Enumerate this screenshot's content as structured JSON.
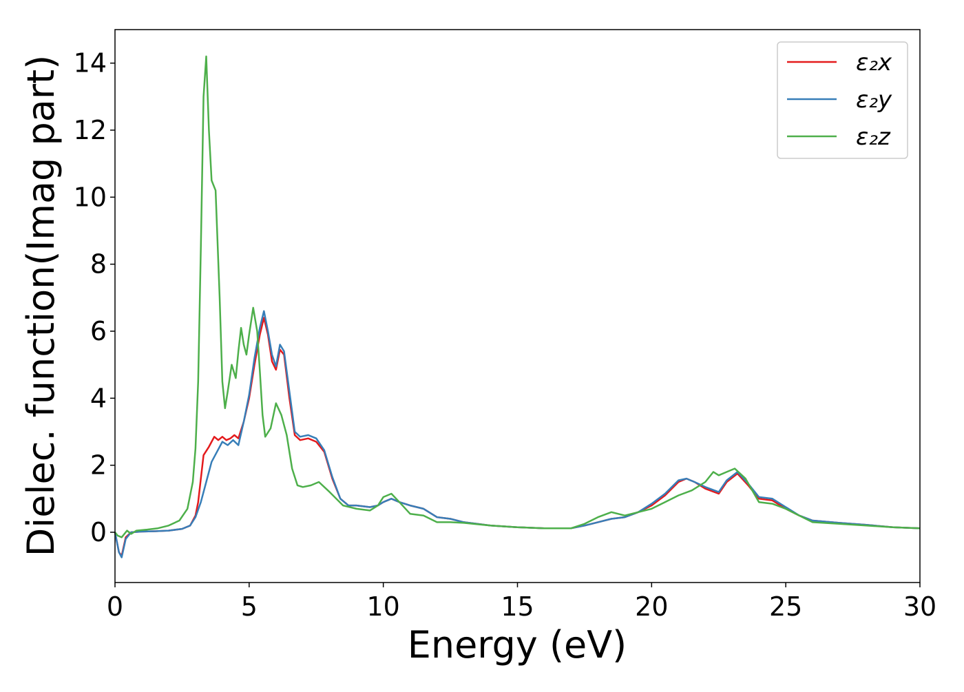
{
  "chart_data": {
    "type": "line",
    "title": "",
    "xlabel": "Energy (eV)",
    "ylabel": "Dielec. function(Imag part)",
    "xlim": [
      0,
      30
    ],
    "ylim": [
      -1.5,
      15
    ],
    "xticks": [
      0,
      5,
      10,
      15,
      20,
      25,
      30
    ],
    "yticks": [
      0,
      2,
      4,
      6,
      8,
      10,
      12,
      14
    ],
    "grid": false,
    "legend_position": "top-right",
    "series": [
      {
        "name": "ε₂x",
        "color": "#e41a1c",
        "points": [
          [
            0,
            0
          ],
          [
            0.15,
            -0.6
          ],
          [
            0.25,
            -0.7
          ],
          [
            0.4,
            -0.15
          ],
          [
            0.6,
            0
          ],
          [
            1,
            0.02
          ],
          [
            1.5,
            0.03
          ],
          [
            2,
            0.05
          ],
          [
            2.5,
            0.1
          ],
          [
            2.8,
            0.2
          ],
          [
            3.0,
            0.5
          ],
          [
            3.1,
            0.9
          ],
          [
            3.2,
            1.6
          ],
          [
            3.3,
            2.3
          ],
          [
            3.5,
            2.55
          ],
          [
            3.7,
            2.85
          ],
          [
            3.85,
            2.75
          ],
          [
            4.0,
            2.85
          ],
          [
            4.15,
            2.75
          ],
          [
            4.3,
            2.8
          ],
          [
            4.45,
            2.9
          ],
          [
            4.6,
            2.8
          ],
          [
            4.8,
            3.3
          ],
          [
            5.0,
            4.0
          ],
          [
            5.2,
            5.0
          ],
          [
            5.4,
            5.9
          ],
          [
            5.55,
            6.4
          ],
          [
            5.7,
            5.9
          ],
          [
            5.85,
            5.1
          ],
          [
            6.0,
            4.85
          ],
          [
            6.15,
            5.45
          ],
          [
            6.3,
            5.3
          ],
          [
            6.5,
            4.0
          ],
          [
            6.7,
            2.9
          ],
          [
            6.9,
            2.75
          ],
          [
            7.2,
            2.8
          ],
          [
            7.5,
            2.7
          ],
          [
            7.8,
            2.4
          ],
          [
            8.1,
            1.6
          ],
          [
            8.4,
            1.0
          ],
          [
            8.7,
            0.8
          ],
          [
            9.0,
            0.8
          ],
          [
            9.5,
            0.75
          ],
          [
            9.8,
            0.8
          ],
          [
            10.0,
            0.9
          ],
          [
            10.3,
            1.0
          ],
          [
            10.6,
            0.9
          ],
          [
            11.0,
            0.8
          ],
          [
            11.5,
            0.7
          ],
          [
            12.0,
            0.45
          ],
          [
            12.5,
            0.4
          ],
          [
            13,
            0.3
          ],
          [
            14,
            0.2
          ],
          [
            15,
            0.15
          ],
          [
            16,
            0.12
          ],
          [
            17,
            0.12
          ],
          [
            17.5,
            0.2
          ],
          [
            18,
            0.3
          ],
          [
            18.5,
            0.4
          ],
          [
            19,
            0.45
          ],
          [
            19.5,
            0.6
          ],
          [
            20,
            0.8
          ],
          [
            20.5,
            1.1
          ],
          [
            21,
            1.5
          ],
          [
            21.3,
            1.6
          ],
          [
            21.6,
            1.5
          ],
          [
            22,
            1.3
          ],
          [
            22.5,
            1.15
          ],
          [
            22.8,
            1.5
          ],
          [
            23.2,
            1.75
          ],
          [
            23.6,
            1.4
          ],
          [
            24,
            1.0
          ],
          [
            24.5,
            0.95
          ],
          [
            25,
            0.7
          ],
          [
            25.5,
            0.5
          ],
          [
            26,
            0.35
          ],
          [
            27,
            0.28
          ],
          [
            28,
            0.22
          ],
          [
            29,
            0.15
          ],
          [
            30,
            0.12
          ]
        ]
      },
      {
        "name": "ε₂y",
        "color": "#377eb8",
        "points": [
          [
            0,
            0
          ],
          [
            0.15,
            -0.6
          ],
          [
            0.25,
            -0.75
          ],
          [
            0.4,
            -0.2
          ],
          [
            0.6,
            0
          ],
          [
            1,
            0.02
          ],
          [
            1.5,
            0.03
          ],
          [
            2,
            0.05
          ],
          [
            2.5,
            0.1
          ],
          [
            2.8,
            0.2
          ],
          [
            3.0,
            0.45
          ],
          [
            3.2,
            0.9
          ],
          [
            3.4,
            1.5
          ],
          [
            3.6,
            2.1
          ],
          [
            3.8,
            2.4
          ],
          [
            4.0,
            2.7
          ],
          [
            4.2,
            2.6
          ],
          [
            4.4,
            2.75
          ],
          [
            4.6,
            2.6
          ],
          [
            4.8,
            3.3
          ],
          [
            5.0,
            4.1
          ],
          [
            5.2,
            5.2
          ],
          [
            5.4,
            6.1
          ],
          [
            5.55,
            6.6
          ],
          [
            5.7,
            6.0
          ],
          [
            5.85,
            5.3
          ],
          [
            6.0,
            4.95
          ],
          [
            6.15,
            5.6
          ],
          [
            6.3,
            5.4
          ],
          [
            6.5,
            4.2
          ],
          [
            6.7,
            3.0
          ],
          [
            6.9,
            2.85
          ],
          [
            7.2,
            2.9
          ],
          [
            7.5,
            2.8
          ],
          [
            7.8,
            2.45
          ],
          [
            8.1,
            1.65
          ],
          [
            8.4,
            1.0
          ],
          [
            8.7,
            0.8
          ],
          [
            9.0,
            0.8
          ],
          [
            9.5,
            0.75
          ],
          [
            9.8,
            0.8
          ],
          [
            10.0,
            0.9
          ],
          [
            10.3,
            1.0
          ],
          [
            10.6,
            0.9
          ],
          [
            11.0,
            0.8
          ],
          [
            11.5,
            0.7
          ],
          [
            12.0,
            0.45
          ],
          [
            12.5,
            0.4
          ],
          [
            13,
            0.3
          ],
          [
            14,
            0.2
          ],
          [
            15,
            0.15
          ],
          [
            16,
            0.12
          ],
          [
            17,
            0.12
          ],
          [
            17.5,
            0.2
          ],
          [
            18,
            0.3
          ],
          [
            18.5,
            0.4
          ],
          [
            19,
            0.45
          ],
          [
            19.5,
            0.6
          ],
          [
            20,
            0.85
          ],
          [
            20.5,
            1.15
          ],
          [
            21,
            1.55
          ],
          [
            21.3,
            1.6
          ],
          [
            21.6,
            1.5
          ],
          [
            22,
            1.35
          ],
          [
            22.5,
            1.2
          ],
          [
            22.8,
            1.55
          ],
          [
            23.2,
            1.8
          ],
          [
            23.6,
            1.45
          ],
          [
            24,
            1.05
          ],
          [
            24.5,
            1.0
          ],
          [
            25,
            0.75
          ],
          [
            25.5,
            0.5
          ],
          [
            26,
            0.35
          ],
          [
            27,
            0.28
          ],
          [
            28,
            0.22
          ],
          [
            29,
            0.15
          ],
          [
            30,
            0.12
          ]
        ]
      },
      {
        "name": "ε₂z",
        "color": "#4daf4a",
        "points": [
          [
            0,
            0
          ],
          [
            0.1,
            -0.1
          ],
          [
            0.25,
            -0.15
          ],
          [
            0.45,
            0.05
          ],
          [
            0.6,
            -0.05
          ],
          [
            0.8,
            0.05
          ],
          [
            1.2,
            0.08
          ],
          [
            1.6,
            0.12
          ],
          [
            2.0,
            0.2
          ],
          [
            2.4,
            0.35
          ],
          [
            2.7,
            0.7
          ],
          [
            2.9,
            1.5
          ],
          [
            3.0,
            2.5
          ],
          [
            3.1,
            4.5
          ],
          [
            3.2,
            8.5
          ],
          [
            3.3,
            13.0
          ],
          [
            3.4,
            14.2
          ],
          [
            3.5,
            12.0
          ],
          [
            3.6,
            10.5
          ],
          [
            3.75,
            10.2
          ],
          [
            3.9,
            7.0
          ],
          [
            4.0,
            4.5
          ],
          [
            4.1,
            3.7
          ],
          [
            4.2,
            4.2
          ],
          [
            4.35,
            5.0
          ],
          [
            4.5,
            4.6
          ],
          [
            4.6,
            5.4
          ],
          [
            4.7,
            6.1
          ],
          [
            4.8,
            5.6
          ],
          [
            4.9,
            5.3
          ],
          [
            5.0,
            5.9
          ],
          [
            5.15,
            6.7
          ],
          [
            5.3,
            6.0
          ],
          [
            5.4,
            4.8
          ],
          [
            5.5,
            3.5
          ],
          [
            5.6,
            2.85
          ],
          [
            5.8,
            3.1
          ],
          [
            6.0,
            3.85
          ],
          [
            6.2,
            3.5
          ],
          [
            6.4,
            2.9
          ],
          [
            6.6,
            1.9
          ],
          [
            6.8,
            1.4
          ],
          [
            7.0,
            1.35
          ],
          [
            7.3,
            1.4
          ],
          [
            7.6,
            1.5
          ],
          [
            8.0,
            1.2
          ],
          [
            8.5,
            0.8
          ],
          [
            9.0,
            0.7
          ],
          [
            9.5,
            0.65
          ],
          [
            9.8,
            0.8
          ],
          [
            10.0,
            1.05
          ],
          [
            10.3,
            1.15
          ],
          [
            10.6,
            0.9
          ],
          [
            11.0,
            0.55
          ],
          [
            11.5,
            0.5
          ],
          [
            12.0,
            0.3
          ],
          [
            12.5,
            0.3
          ],
          [
            13,
            0.28
          ],
          [
            14,
            0.2
          ],
          [
            15,
            0.15
          ],
          [
            16,
            0.12
          ],
          [
            17,
            0.12
          ],
          [
            17.5,
            0.25
          ],
          [
            18,
            0.45
          ],
          [
            18.5,
            0.6
          ],
          [
            19,
            0.5
          ],
          [
            19.5,
            0.6
          ],
          [
            20,
            0.7
          ],
          [
            20.5,
            0.9
          ],
          [
            21,
            1.1
          ],
          [
            21.5,
            1.25
          ],
          [
            22,
            1.5
          ],
          [
            22.3,
            1.8
          ],
          [
            22.5,
            1.7
          ],
          [
            22.8,
            1.8
          ],
          [
            23.1,
            1.9
          ],
          [
            23.5,
            1.6
          ],
          [
            24,
            0.9
          ],
          [
            24.5,
            0.85
          ],
          [
            25,
            0.7
          ],
          [
            25.5,
            0.5
          ],
          [
            26,
            0.3
          ],
          [
            27,
            0.25
          ],
          [
            28,
            0.2
          ],
          [
            29,
            0.15
          ],
          [
            30,
            0.12
          ]
        ]
      }
    ]
  }
}
